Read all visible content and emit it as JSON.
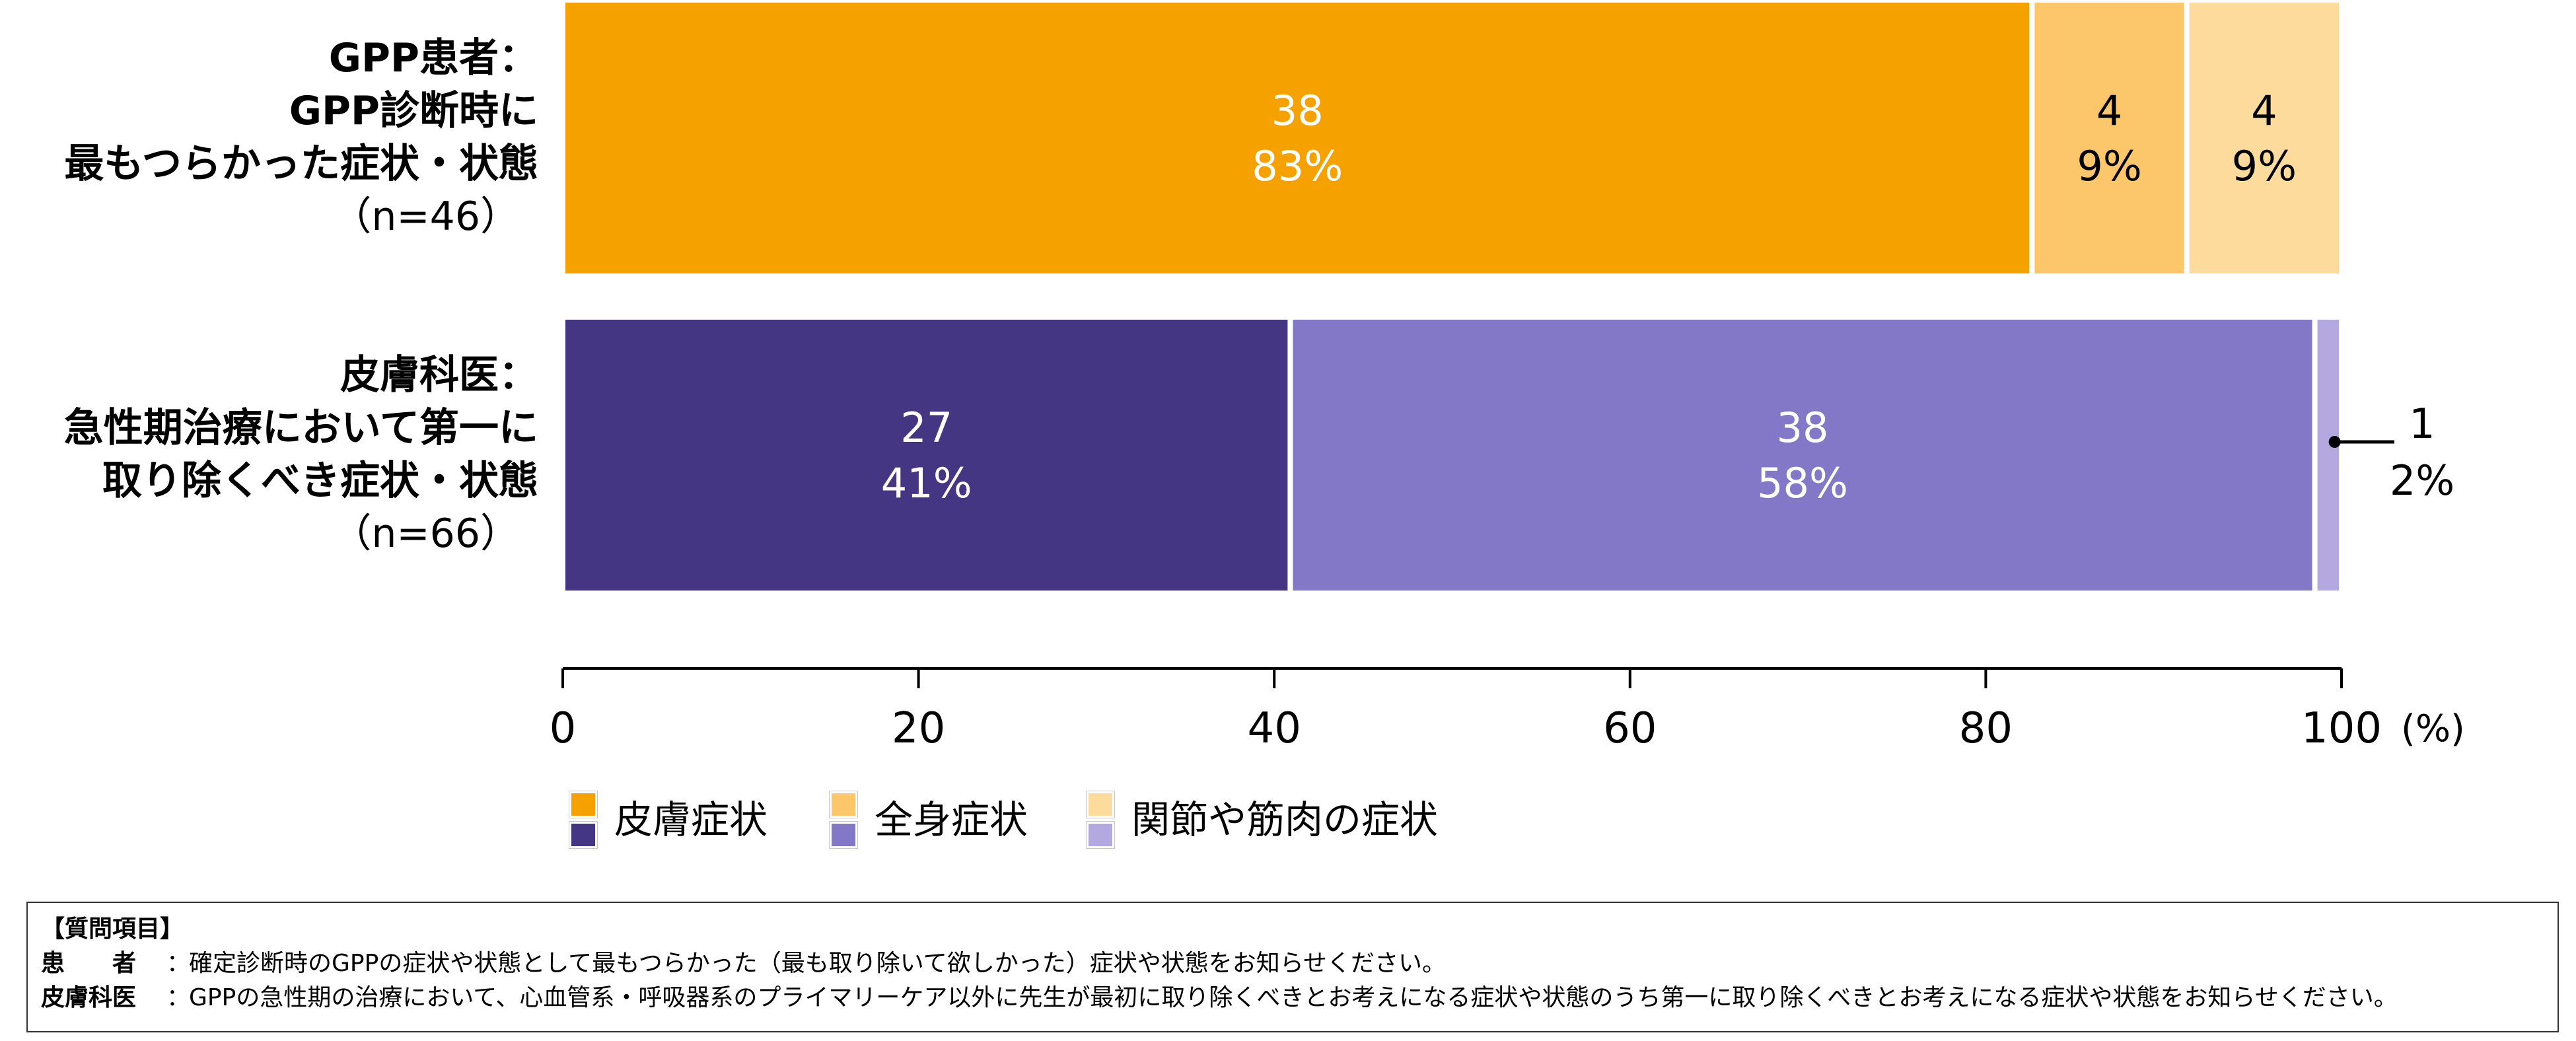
{
  "chart_data": {
    "type": "stacked-bar-horizontal",
    "xlim": [
      0,
      100
    ],
    "xticks": [
      "0",
      "20",
      "40",
      "60",
      "80",
      "100"
    ],
    "x_unit": "(%)",
    "rows": [
      {
        "label_bold": [
          "GPP患者：",
          "GPP診断時に",
          "最もつらかった症状・状態"
        ],
        "label_n": "（n=46）",
        "segments": [
          {
            "count": "38",
            "pct": "83%",
            "value": 82.6,
            "color": "#F5A200",
            "text_color": "#ffffff"
          },
          {
            "count": "4",
            "pct": "9%",
            "value": 8.7,
            "color": "#FBC76A",
            "text_color": "#000000"
          },
          {
            "count": "4",
            "pct": "9%",
            "value": 8.7,
            "color": "#FDDB9C",
            "text_color": "#000000"
          }
        ]
      },
      {
        "label_bold": [
          "皮膚科医：",
          "急性期治療において第一に",
          "取り除くべき症状・状態"
        ],
        "label_n": "（n=66）",
        "segments": [
          {
            "count": "27",
            "pct": "41%",
            "value": 40.9,
            "color": "#443682",
            "text_color": "#ffffff"
          },
          {
            "count": "38",
            "pct": "58%",
            "value": 57.6,
            "color": "#8378C8",
            "text_color": "#ffffff"
          },
          {
            "count": "1",
            "pct": "2%",
            "value": 1.5,
            "color": "#B3A9E0",
            "text_color": "#000000",
            "callout": true
          }
        ]
      }
    ],
    "legend": [
      {
        "label": "皮膚症状",
        "colors": [
          "#F5A200",
          "#443682"
        ]
      },
      {
        "label": "全身症状",
        "colors": [
          "#FBC76A",
          "#8378C8"
        ]
      },
      {
        "label": "関節や筋肉の症状",
        "colors": [
          "#FDDB9C",
          "#B3A9E0"
        ]
      }
    ]
  },
  "question_box": {
    "title": "【質問項目】",
    "rows": [
      {
        "label": "患　　者",
        "sep": "：",
        "text": "確定診断時のGPPの症状や状態として最もつらかった（最も取り除いて欲しかった）症状や状態をお知らせください。"
      },
      {
        "label": "皮膚科医",
        "sep": "：",
        "text": "GPPの急性期の治療において、心血管系・呼吸器系のプライマリーケア以外に先生が最初に取り除くべきとお考えになる症状や状態のうち第一に取り除くべきとお考えになる症状や状態をお知らせください。"
      }
    ]
  }
}
